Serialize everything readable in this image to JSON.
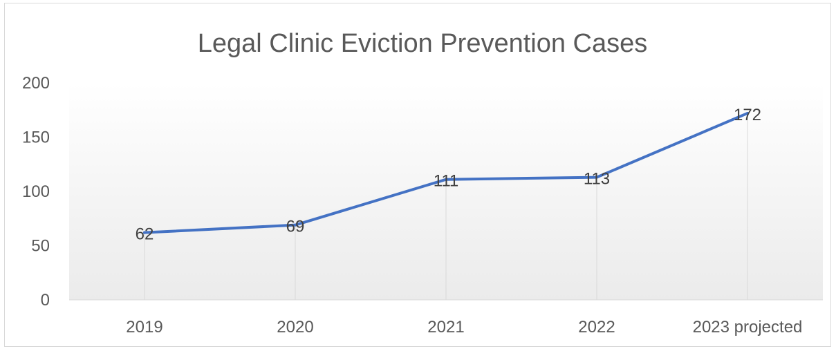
{
  "chart_data": {
    "type": "line",
    "title": "Legal Clinic Eviction Prevention Cases",
    "xlabel": "",
    "ylabel": "",
    "categories": [
      "2019",
      "2020",
      "2021",
      "2022",
      "2023 projected"
    ],
    "series": [
      {
        "values": [
          62,
          69,
          111,
          113,
          172
        ]
      }
    ],
    "ylim": [
      0,
      200
    ],
    "yticks": [
      0,
      50,
      100,
      150,
      200
    ],
    "data_labels": true,
    "drop_lines": true,
    "gridlines": false,
    "legend": "none",
    "plot_background": "gradient white to light gray",
    "colors": {
      "line": "#4472C4",
      "text": "#595959",
      "drop_line": "#d9d9d9",
      "axis": "#d9d9d9"
    }
  }
}
